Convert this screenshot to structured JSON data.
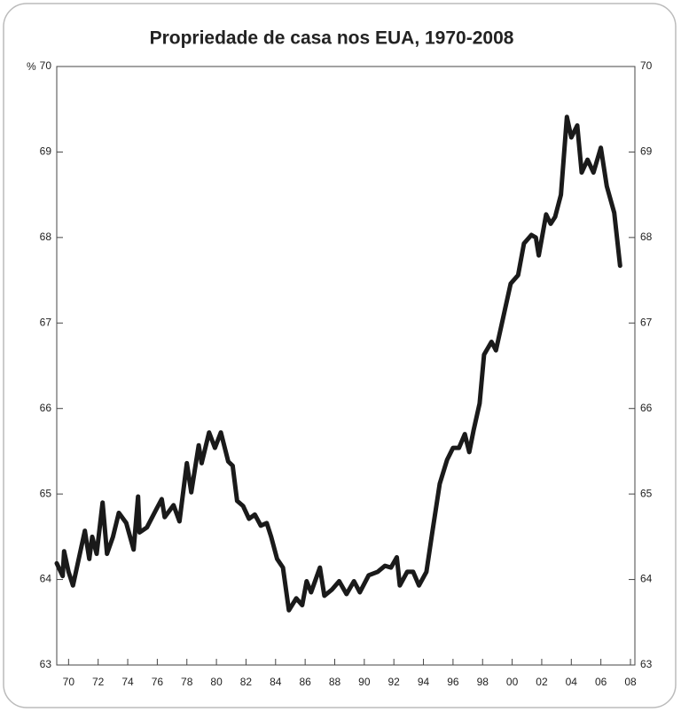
{
  "chart_data": {
    "type": "line",
    "title": "Propriedade de casa nos EUA, 1970-2008",
    "y_unit": "%",
    "color": "#1a1a1a",
    "x": [
      1969.2,
      1969.6,
      1969.7,
      1970.0,
      1970.3,
      1971.1,
      1971.4,
      1971.6,
      1971.9,
      1972.3,
      1972.6,
      1973.0,
      1973.4,
      1973.9,
      1974.4,
      1974.7,
      1974.8,
      1975.3,
      1975.9,
      1976.3,
      1976.5,
      1977.1,
      1977.5,
      1978.0,
      1978.3,
      1978.8,
      1979.0,
      1979.5,
      1979.9,
      1980.3,
      1980.8,
      1981.1,
      1981.4,
      1981.8,
      1982.2,
      1982.6,
      1983.0,
      1983.4,
      1983.7,
      1984.1,
      1984.5,
      1984.9,
      1985.4,
      1985.8,
      1986.1,
      1986.4,
      1987.0,
      1987.3,
      1987.8,
      1988.3,
      1988.8,
      1989.3,
      1989.7,
      1990.3,
      1990.9,
      1991.4,
      1991.8,
      1992.2,
      1992.4,
      1992.9,
      1993.3,
      1993.7,
      1994.2,
      1994.6,
      1995.1,
      1995.6,
      1996.0,
      1996.4,
      1996.8,
      1997.1,
      1997.4,
      1997.8,
      1998.1,
      1998.6,
      1998.9,
      1999.5,
      1999.9,
      2000.4,
      2000.8,
      2001.3,
      2001.6,
      2001.8,
      2002.3,
      2002.6,
      2002.9,
      2003.3,
      2003.7,
      2004.0,
      2004.4,
      2004.7,
      2005.1,
      2005.5,
      2006.0,
      2006.4,
      2006.9,
      2007.3
    ],
    "values": [
      64.19,
      64.04,
      64.33,
      64.09,
      63.93,
      64.57,
      64.24,
      64.5,
      64.3,
      64.9,
      64.3,
      64.5,
      64.78,
      64.66,
      64.35,
      64.97,
      64.55,
      64.61,
      64.81,
      64.94,
      64.73,
      64.87,
      64.68,
      65.36,
      65.02,
      65.57,
      65.36,
      65.72,
      65.54,
      65.72,
      65.38,
      65.33,
      64.92,
      64.86,
      64.71,
      64.76,
      64.63,
      64.66,
      64.5,
      64.24,
      64.14,
      63.64,
      63.78,
      63.7,
      63.98,
      63.85,
      64.14,
      63.81,
      63.88,
      63.98,
      63.83,
      63.98,
      63.85,
      64.05,
      64.09,
      64.16,
      64.14,
      64.26,
      63.93,
      64.09,
      64.09,
      63.93,
      64.09,
      64.55,
      65.12,
      65.4,
      65.54,
      65.54,
      65.7,
      65.49,
      65.75,
      66.06,
      66.63,
      66.78,
      66.68,
      67.15,
      67.46,
      67.56,
      67.93,
      68.03,
      68.0,
      67.79,
      68.27,
      68.16,
      68.24,
      68.5,
      69.41,
      69.17,
      69.31,
      68.76,
      68.91,
      68.76,
      69.05,
      68.6,
      68.29,
      67.67
    ],
    "xlim": [
      1969.2,
      2008.3
    ],
    "ylim": [
      63,
      70
    ],
    "xticks": [
      {
        "value": 1970,
        "label": "70"
      },
      {
        "value": 1972,
        "label": "72"
      },
      {
        "value": 1974,
        "label": "74"
      },
      {
        "value": 1976,
        "label": "76"
      },
      {
        "value": 1978,
        "label": "78"
      },
      {
        "value": 1980,
        "label": "80"
      },
      {
        "value": 1982,
        "label": "82"
      },
      {
        "value": 1984,
        "label": "84"
      },
      {
        "value": 1986,
        "label": "86"
      },
      {
        "value": 1988,
        "label": "88"
      },
      {
        "value": 1990,
        "label": "90"
      },
      {
        "value": 1992,
        "label": "92"
      },
      {
        "value": 1994,
        "label": "94"
      },
      {
        "value": 1996,
        "label": "96"
      },
      {
        "value": 1998,
        "label": "98"
      },
      {
        "value": 2000,
        "label": "00"
      },
      {
        "value": 2002,
        "label": "02"
      },
      {
        "value": 2004,
        "label": "04"
      },
      {
        "value": 2006,
        "label": "06"
      },
      {
        "value": 2008,
        "label": "08"
      }
    ],
    "yticks": [
      63,
      64,
      65,
      66,
      67,
      68,
      69,
      70
    ]
  }
}
